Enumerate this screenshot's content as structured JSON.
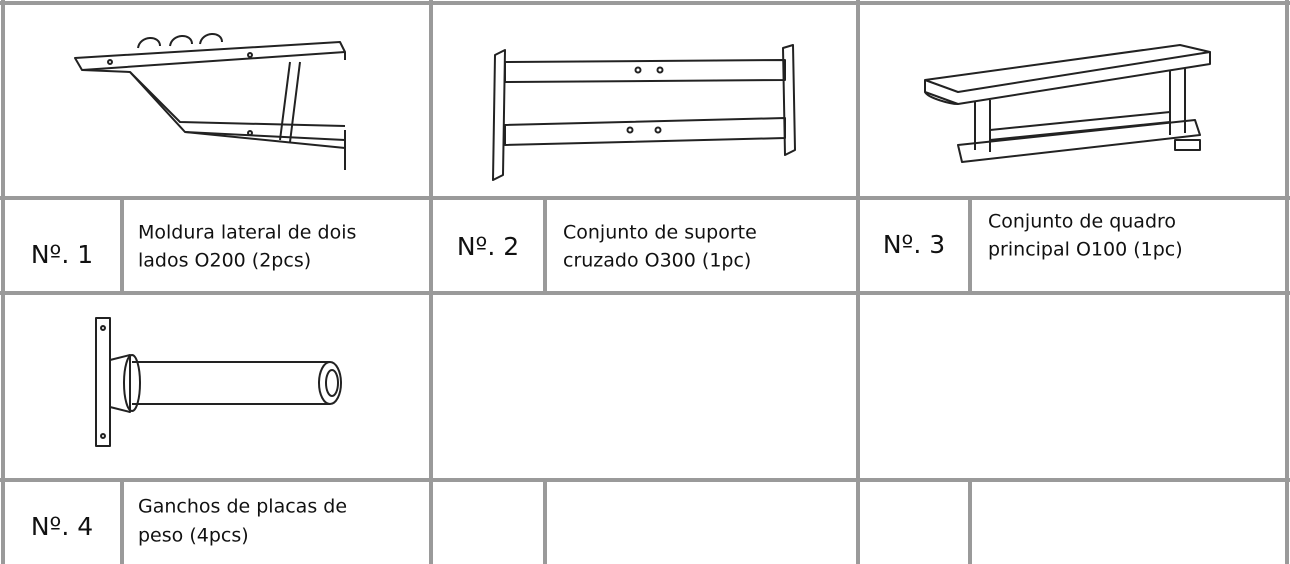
{
  "parts": [
    {
      "number": "Nº. 1",
      "description": [
        "Moldura lateral de dois",
        "lados O200 (2pcs)"
      ]
    },
    {
      "number": "Nº. 2",
      "description": [
        "Conjunto de suporte",
        "cruzado O300 (1pc)"
      ]
    },
    {
      "number": "Nº. 3",
      "description": [
        "Conjunto de quadro",
        "principal O100 (1pc)"
      ]
    },
    {
      "number": "Nº. 4",
      "description": [
        "Ganchos de placas de",
        "peso (4pcs)"
      ]
    }
  ]
}
